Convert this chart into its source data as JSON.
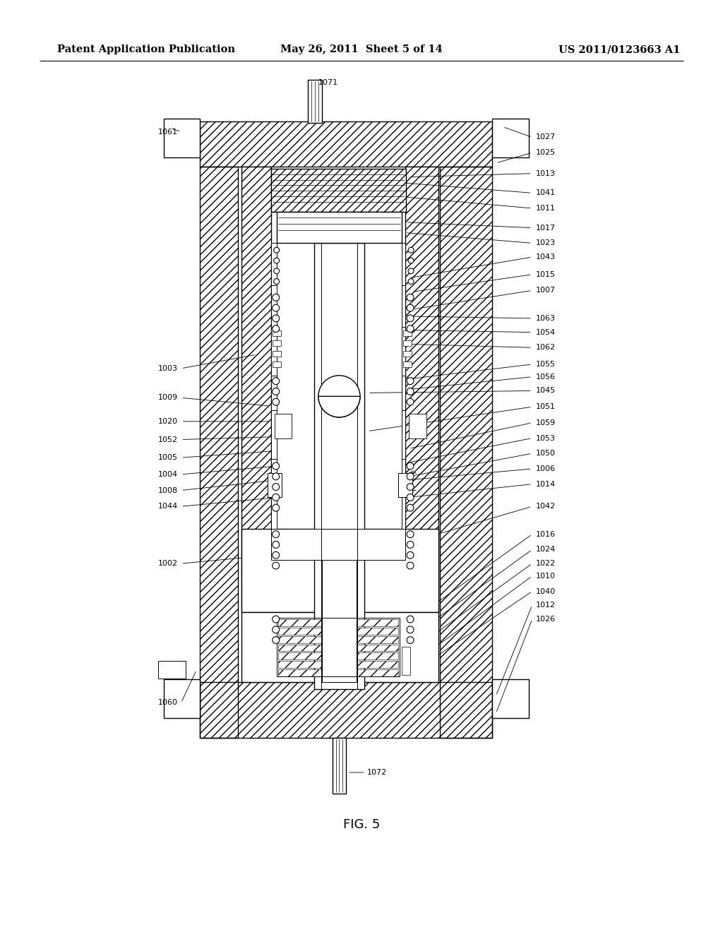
{
  "bg_color": "#ffffff",
  "header_left": "Patent Application Publication",
  "header_center": "May 26, 2011  Sheet 5 of 14",
  "header_right": "US 2011/0123663 A1",
  "figure_label": "FIG. 5",
  "header_font_size": 10.5,
  "figure_font_size": 13,
  "label_font_size": 8.0
}
